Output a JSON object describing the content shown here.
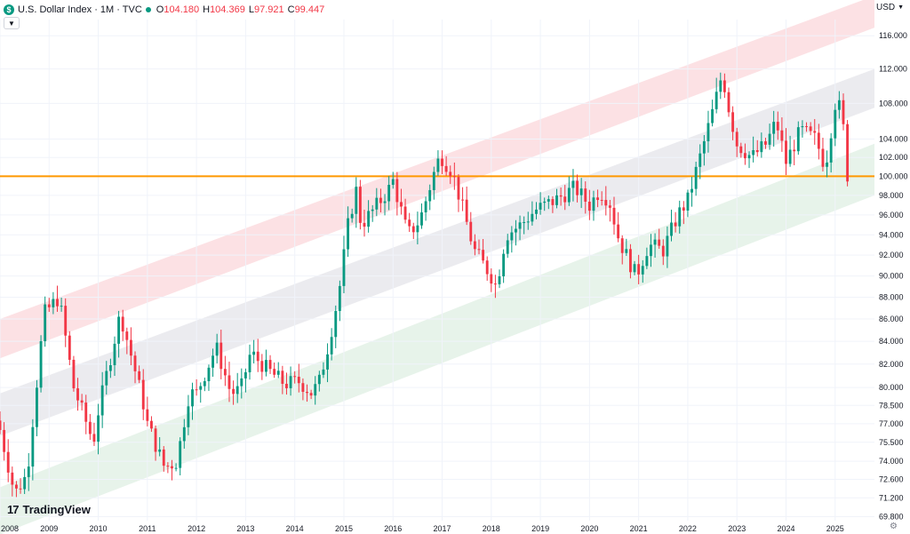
{
  "header": {
    "badge_letter": "$",
    "symbol_title": "U.S. Dollar Index · 1M · TVC",
    "ohlc": [
      {
        "key": "O",
        "value": "104.180"
      },
      {
        "key": "H",
        "value": "104.369"
      },
      {
        "key": "L",
        "value": "97.921"
      },
      {
        "key": "C",
        "value": "99.447"
      }
    ],
    "collapse_icon": "chevron-down-icon"
  },
  "currency": {
    "label": "USD",
    "icon": "chevron-down-icon"
  },
  "brand": {
    "logo_mark": "17",
    "name": "TradingView"
  },
  "settings_icon": "gear-icon",
  "colors": {
    "up": "#089981",
    "down": "#f23645",
    "horizontal_line": "#ff9800",
    "upper_band": "#fbdcdf",
    "middle_band": "#e8e8ec",
    "lower_band": "#e3f1e6",
    "grid": "#f0f3fa",
    "axis_text": "#131722"
  },
  "chart_data": {
    "type": "candlestick",
    "x_axis_years": [
      "2008",
      "2009",
      "2010",
      "2011",
      "2012",
      "2013",
      "2014",
      "2015",
      "2016",
      "2017",
      "2018",
      "2019",
      "2020",
      "2021",
      "2022",
      "2023",
      "2024",
      "2025"
    ],
    "y_axis_ticks": [
      "116.000",
      "112.000",
      "108.000",
      "104.000",
      "102.000",
      "100.000",
      "98.000",
      "96.000",
      "94.000",
      "92.000",
      "90.000",
      "88.000",
      "86.000",
      "84.000",
      "82.000",
      "80.000",
      "78.500",
      "77.000",
      "75.500",
      "74.000",
      "72.600",
      "71.200",
      "69.800"
    ],
    "y_scale": "log",
    "ylim": [
      69.5,
      118
    ],
    "horizontal_line": 100.0,
    "channel": {
      "upper_band": {
        "start": [
          2008.0,
          86.0,
          82.5
        ],
        "end": [
          2025.8,
          121.0,
          117.0
        ]
      },
      "middle_band": {
        "start": [
          2008.0,
          79.5,
          76.0
        ],
        "end": [
          2025.8,
          112.0,
          107.5
        ]
      },
      "lower_band": {
        "start": [
          2008.0,
          72.0,
          68.5
        ],
        "end": [
          2025.8,
          103.5,
          98.0
        ]
      }
    },
    "anchors": [
      [
        2008.0,
        76.5
      ],
      [
        2008.3,
        71.5
      ],
      [
        2008.55,
        73.0
      ],
      [
        2008.9,
        86.5
      ],
      [
        2009.2,
        88.0
      ],
      [
        2009.5,
        80.0
      ],
      [
        2009.9,
        75.5
      ],
      [
        2010.0,
        78.0
      ],
      [
        2010.45,
        86.5
      ],
      [
        2010.9,
        79.0
      ],
      [
        2011.0,
        77.0
      ],
      [
        2011.35,
        73.5
      ],
      [
        2011.6,
        74.0
      ],
      [
        2011.85,
        79.5
      ],
      [
        2012.0,
        79.5
      ],
      [
        2012.4,
        83.5
      ],
      [
        2012.7,
        79.5
      ],
      [
        2012.9,
        79.8
      ],
      [
        2013.1,
        83.0
      ],
      [
        2013.45,
        81.5
      ],
      [
        2013.8,
        80.3
      ],
      [
        2014.1,
        80.5
      ],
      [
        2014.35,
        79.5
      ],
      [
        2014.5,
        80.5
      ],
      [
        2014.7,
        84.0
      ],
      [
        2014.9,
        88.5
      ],
      [
        2015.1,
        95.5
      ],
      [
        2015.25,
        98.5
      ],
      [
        2015.35,
        95.0
      ],
      [
        2015.6,
        96.5
      ],
      [
        2015.9,
        98.5
      ],
      [
        2016.0,
        99.5
      ],
      [
        2016.3,
        94.0
      ],
      [
        2016.55,
        95.5
      ],
      [
        2016.9,
        101.5
      ],
      [
        2017.0,
        102.0
      ],
      [
        2017.2,
        100.5
      ],
      [
        2017.4,
        97.0
      ],
      [
        2017.65,
        92.5
      ],
      [
        2018.0,
        90.0
      ],
      [
        2018.1,
        89.0
      ],
      [
        2018.3,
        94.0
      ],
      [
        2018.6,
        95.0
      ],
      [
        2018.9,
        96.5
      ],
      [
        2019.3,
        97.5
      ],
      [
        2019.7,
        98.8
      ],
      [
        2020.0,
        97.0
      ],
      [
        2020.2,
        98.5
      ],
      [
        2020.4,
        97.5
      ],
      [
        2020.6,
        93.5
      ],
      [
        2020.95,
        90.0
      ],
      [
        2021.2,
        93.0
      ],
      [
        2021.5,
        92.5
      ],
      [
        2021.8,
        96.0
      ],
      [
        2022.0,
        97.5
      ],
      [
        2022.3,
        103.0
      ],
      [
        2022.55,
        108.0
      ],
      [
        2022.7,
        111.5
      ],
      [
        2022.85,
        107.0
      ],
      [
        2023.0,
        103.5
      ],
      [
        2023.3,
        102.0
      ],
      [
        2023.6,
        103.5
      ],
      [
        2023.8,
        106.0
      ],
      [
        2024.0,
        101.5
      ],
      [
        2024.3,
        105.0
      ],
      [
        2024.6,
        104.0
      ],
      [
        2024.8,
        101.0
      ],
      [
        2025.0,
        108.0
      ],
      [
        2025.1,
        107.5
      ],
      [
        2025.2,
        104.0
      ],
      [
        2025.28,
        99.447
      ]
    ]
  }
}
